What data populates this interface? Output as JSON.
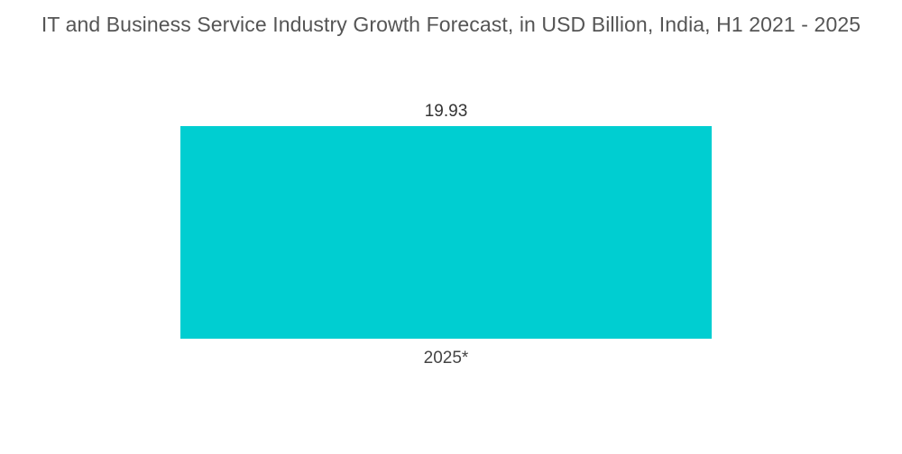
{
  "chart_data": {
    "type": "bar",
    "title": "IT and Business Service Industry Growth Forecast, in USD Billion, India, H1 2021 - 2025",
    "categories": [
      "2025*"
    ],
    "series": [
      {
        "values": [
          19.93
        ],
        "value_labels": [
          "19.93"
        ],
        "color": "#00CED1"
      }
    ],
    "xlabel": "",
    "ylabel": "",
    "ylim": [
      0,
      19.93
    ],
    "grid": false,
    "legend": "none"
  }
}
